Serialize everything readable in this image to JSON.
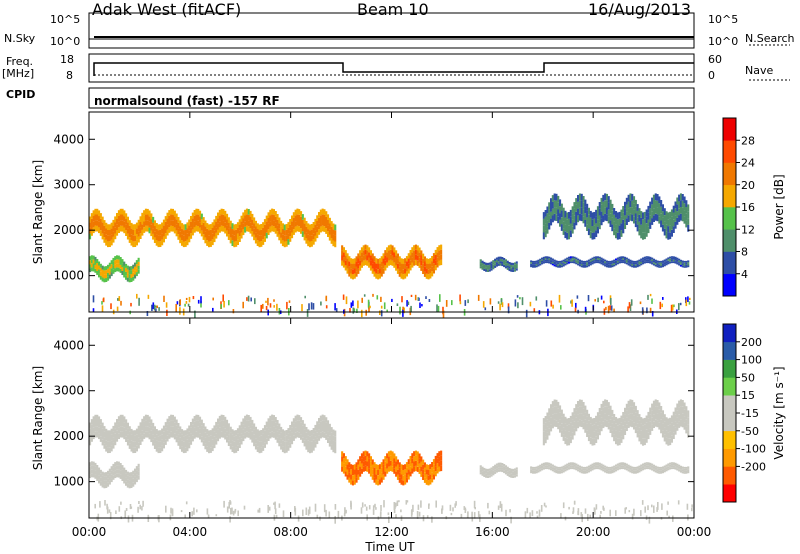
{
  "header": {
    "station": "Adak West (fitACF)",
    "beam": "Beam 10",
    "date": "16/Aug/2013"
  },
  "summary": {
    "nsky_label": "N.Sky",
    "nsearch_label": "N.Search",
    "nsky_ticks": [
      "10^5",
      "10^0"
    ],
    "nsearch_ticks": [
      "10^5",
      "10^0"
    ],
    "freq_label": "Freq.",
    "freq_unit": "[MHz]",
    "freq_ticks": [
      "18",
      "8"
    ],
    "nave_label": "Nave",
    "nave_ticks": [
      "60",
      "0"
    ],
    "cpid_label": "CPID",
    "cpid_text": "normalsound (fast) -157 RF"
  },
  "colors": {
    "power_scale": [
      "#0000ff",
      "#2e4ea6",
      "#4f8f6a",
      "#56c24a",
      "#f5a800",
      "#f07800",
      "#ff4a00",
      "#ee0000"
    ],
    "velocity_scale": [
      "#ff0000",
      "#ff5a00",
      "#ff9a00",
      "#ffc000",
      "#c8c8c0",
      "#c8c8c0",
      "#6ccf4a",
      "#3aa040",
      "#2a5ca8",
      "#1020c0"
    ]
  },
  "chart_data": [
    {
      "type": "heatmap",
      "name_key": "power",
      "ylabel": "Slant Range [km]",
      "xlabel": "Time UT",
      "ylim": [
        200,
        4600
      ],
      "xlim_hours": [
        0,
        24
      ],
      "y_ticks": [
        "1000",
        "2000",
        "3000",
        "4000"
      ],
      "x_ticks": [
        "00:00",
        "04:00",
        "08:00",
        "12:00",
        "16:00",
        "20:00",
        "00:00"
      ],
      "colorbar": {
        "label": "Power [dB]",
        "ticks": [
          "4",
          "8",
          "12",
          "16",
          "20",
          "24",
          "28"
        ],
        "range": [
          0,
          32
        ]
      },
      "echo_regions_hours_km": [
        {
          "t_start": 0.0,
          "t_end": 9.8,
          "range_center": 2050,
          "range_width": 500,
          "value": 24
        },
        {
          "t_start": 0.0,
          "t_end": 2.0,
          "range_center": 1150,
          "range_width": 350,
          "value": 18
        },
        {
          "t_start": 10.0,
          "t_end": 14.0,
          "range_center": 1300,
          "range_width": 450,
          "value": 26
        },
        {
          "t_start": 15.5,
          "t_end": 17.0,
          "range_center": 1250,
          "range_width": 200,
          "value": 10
        },
        {
          "t_start": 17.5,
          "t_end": 23.8,
          "range_center": 1300,
          "range_width": 150,
          "value": 8
        },
        {
          "t_start": 18.0,
          "t_end": 23.8,
          "range_center": 2300,
          "range_width": 600,
          "value": 10
        }
      ]
    },
    {
      "type": "heatmap",
      "name_key": "velocity",
      "ylabel": "Slant Range [km]",
      "xlabel": "Time UT",
      "ylim": [
        200,
        4600
      ],
      "xlim_hours": [
        0,
        24
      ],
      "y_ticks": [
        "1000",
        "2000",
        "3000",
        "4000"
      ],
      "x_ticks": [
        "00:00",
        "04:00",
        "08:00",
        "12:00",
        "16:00",
        "20:00",
        "00:00"
      ],
      "colorbar": {
        "label": "Velocity [m s⁻¹]",
        "ticks": [
          "200",
          "100",
          "50",
          "15",
          "-15",
          "-50",
          "-100",
          "-200"
        ],
        "range": [
          -250,
          250
        ]
      },
      "echo_regions_hours_km": [
        {
          "t_start": 0.0,
          "t_end": 9.8,
          "range_center": 2050,
          "range_width": 500,
          "value": 0
        },
        {
          "t_start": 0.0,
          "t_end": 2.0,
          "range_center": 1150,
          "range_width": 350,
          "value": 0
        },
        {
          "t_start": 10.0,
          "t_end": 14.0,
          "range_center": 1300,
          "range_width": 450,
          "value": -150
        },
        {
          "t_start": 15.5,
          "t_end": 17.0,
          "range_center": 1250,
          "range_width": 200,
          "value": 30
        },
        {
          "t_start": 17.5,
          "t_end": 23.8,
          "range_center": 1300,
          "range_width": 150,
          "value": 0
        },
        {
          "t_start": 18.0,
          "t_end": 23.8,
          "range_center": 2300,
          "range_width": 600,
          "value": 0
        }
      ]
    }
  ]
}
